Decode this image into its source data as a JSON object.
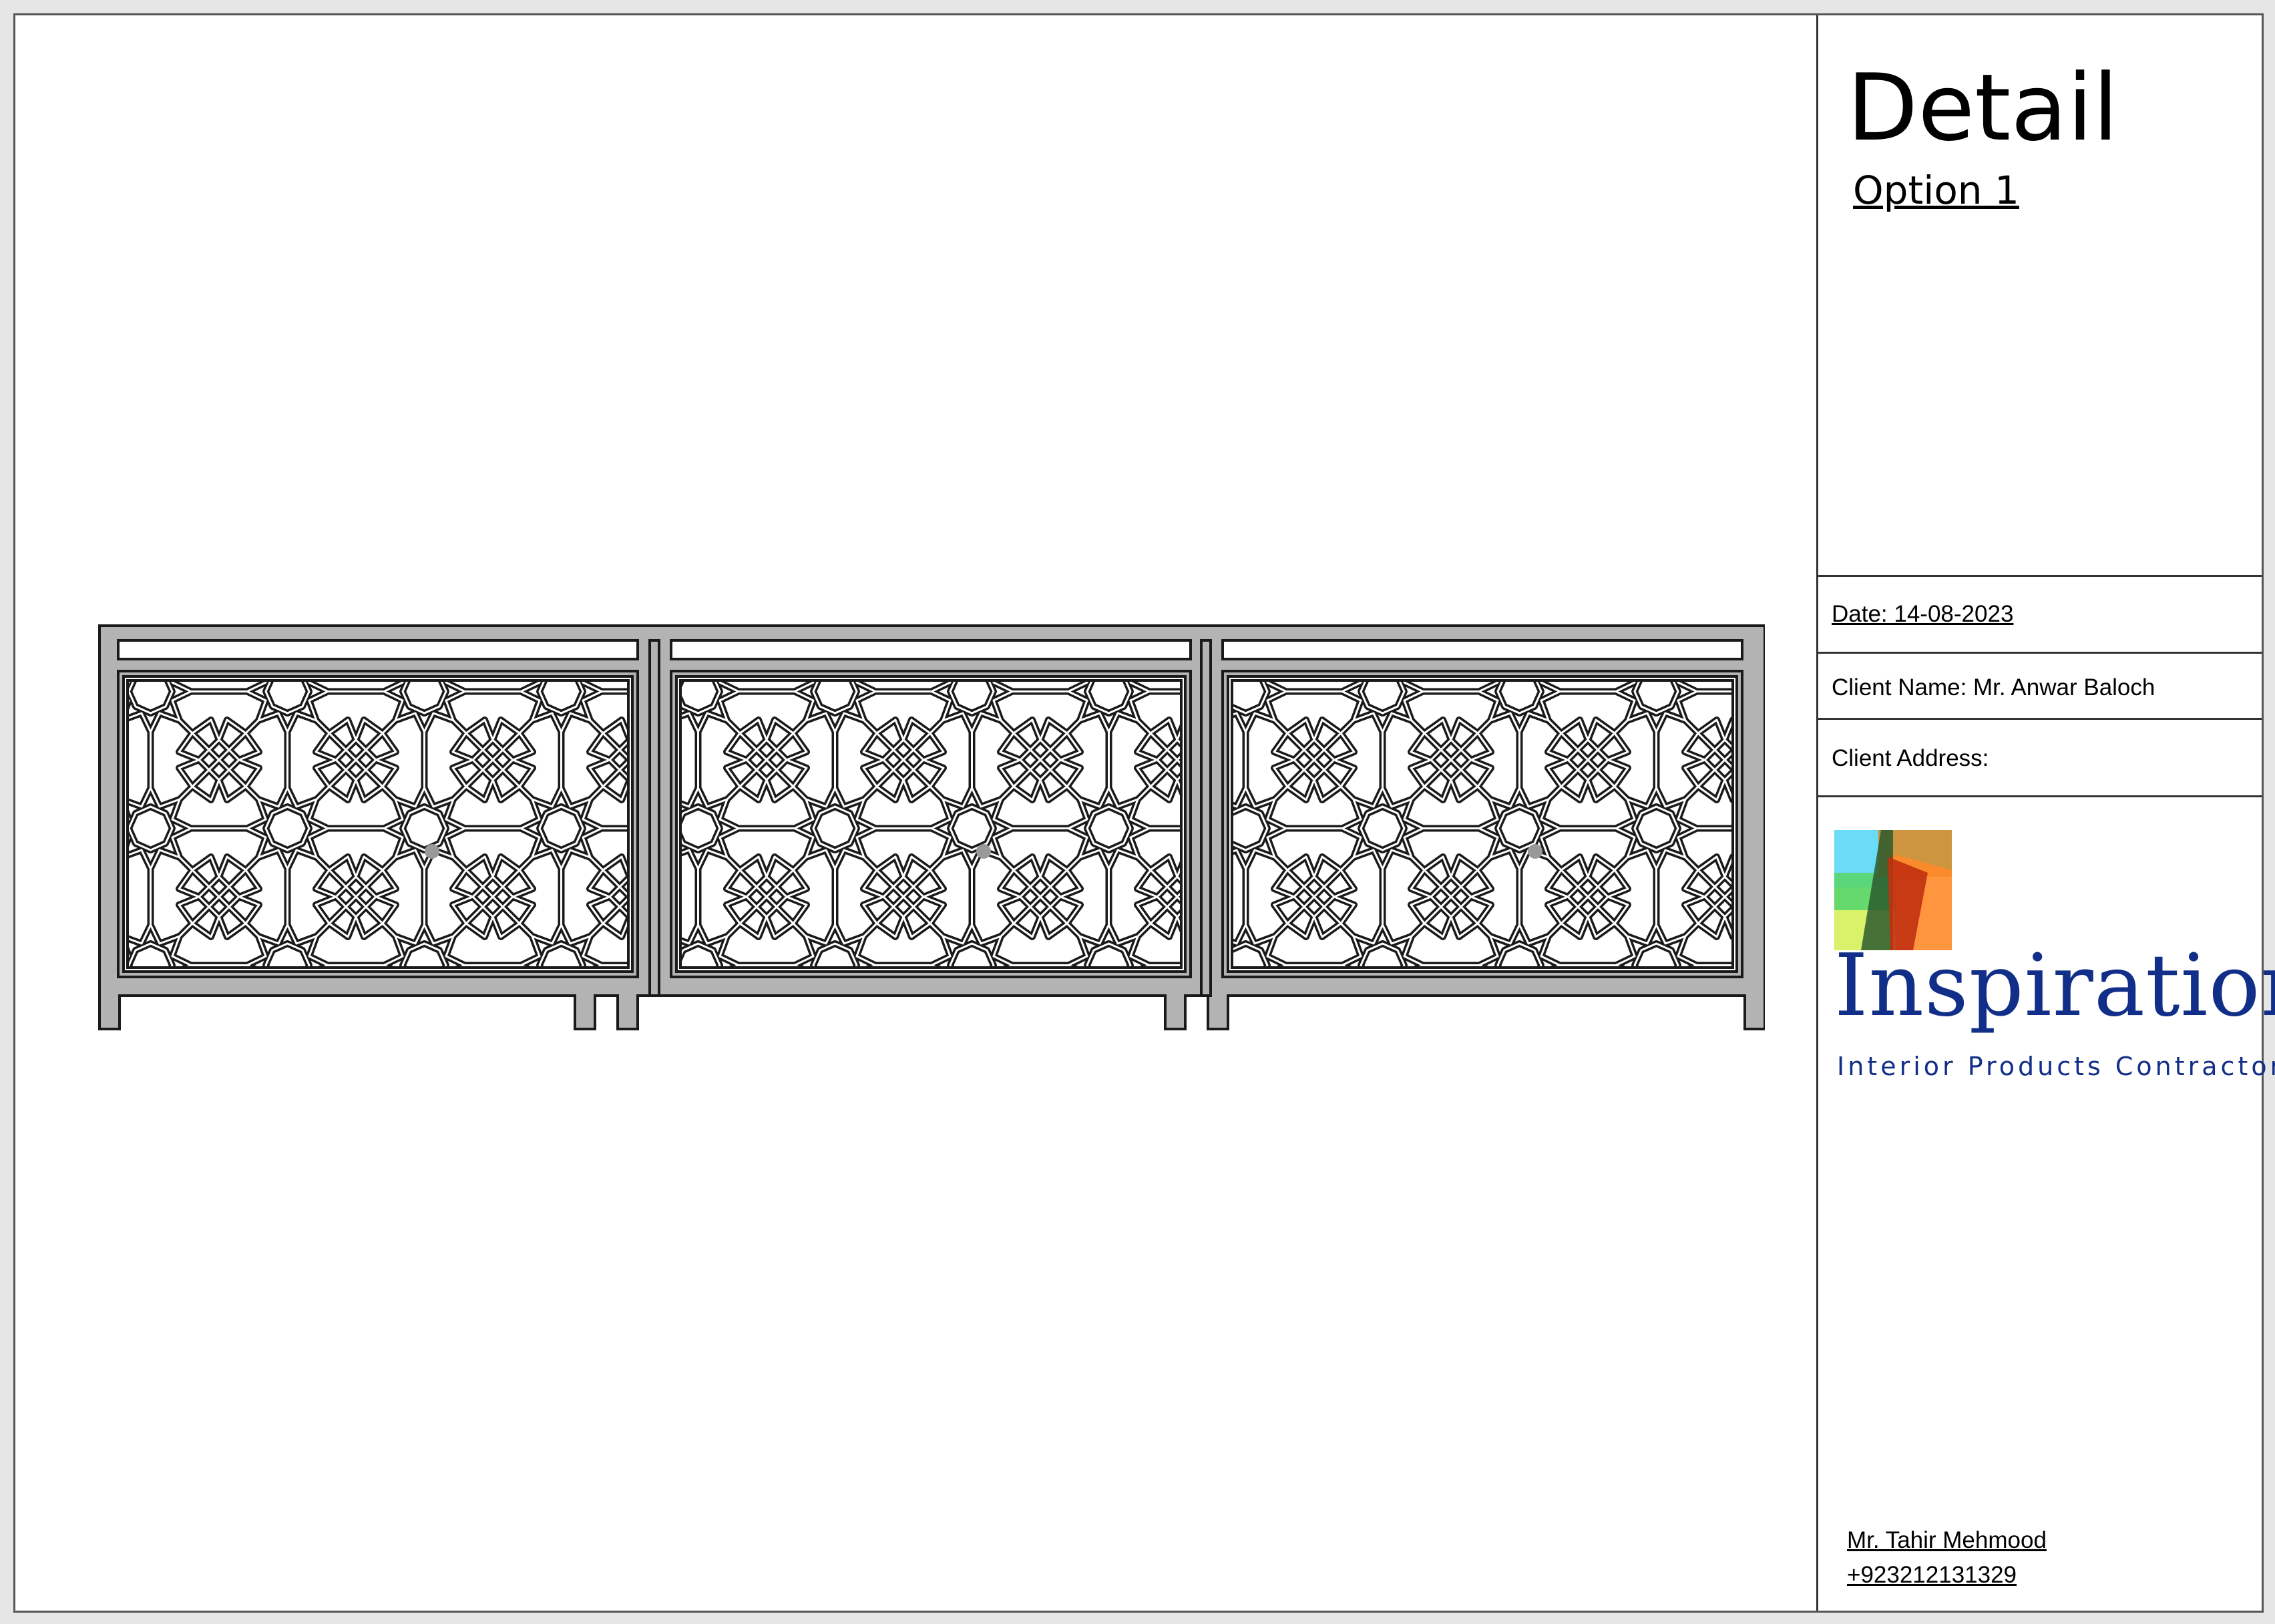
{
  "title_block": {
    "title": "Detail",
    "option": "Option 1",
    "date": "Date: 14-08-2023",
    "client_name": "Client Name: Mr. Anwar Baloch",
    "client_address": "Client Address:",
    "company": {
      "name": "Inspiration",
      "tagline": "Interior Products Contractor"
    },
    "contact": {
      "person": "Mr. Tahir Mehmood",
      "phone": "+923212131329"
    }
  },
  "drawing": {
    "subject": "three-door-console-with-geometric-star-lattice",
    "door_count": 3
  },
  "colors": {
    "frame_gray": "#b3b3b3",
    "line": "#1a1a1a",
    "logo_blue": "#112e88"
  }
}
